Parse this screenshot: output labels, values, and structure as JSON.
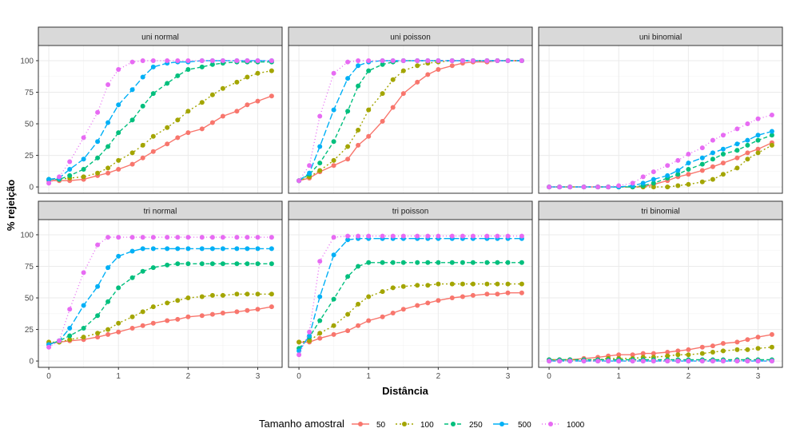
{
  "chart_data": {
    "type": "line",
    "layout": "facet-grid-2x3",
    "xlabel": "Distância",
    "ylabel": "% rejeição",
    "xlim": [
      -0.15,
      3.35
    ],
    "ylim": [
      -5,
      112
    ],
    "x_ticks": [
      0,
      1,
      2,
      3
    ],
    "y_ticks": [
      0,
      25,
      50,
      75,
      100
    ],
    "grid": true,
    "legend_position": "bottom",
    "legend_title": "Tamanho amostral",
    "x": [
      0,
      0.15,
      0.3,
      0.5,
      0.7,
      0.85,
      1,
      1.2,
      1.35,
      1.5,
      1.7,
      1.85,
      2,
      2.2,
      2.35,
      2.5,
      2.7,
      2.85,
      3,
      3.2
    ],
    "series_styles": [
      {
        "name": "50",
        "color": "#F8766D",
        "dash": ""
      },
      {
        "name": "100",
        "color": "#A3A500",
        "dash": "2,3"
      },
      {
        "name": "250",
        "color": "#00BF7D",
        "dash": "5,3"
      },
      {
        "name": "500",
        "color": "#00B0F6",
        "dash": "8,3"
      },
      {
        "name": "1000",
        "color": "#E76BF3",
        "dash": "1,3"
      }
    ],
    "panels": [
      {
        "title": "uni normal",
        "series": [
          {
            "name": "50",
            "values": [
              5,
              5,
              5,
              6,
              9,
              11,
              14,
              18,
              23,
              28,
              34,
              39,
              43,
              46,
              51,
              56,
              60,
              65,
              68,
              72
            ]
          },
          {
            "name": "100",
            "values": [
              6,
              6,
              7,
              8,
              11,
              15,
              21,
              27,
              33,
              40,
              47,
              53,
              60,
              67,
              73,
              78,
              83,
              87,
              90,
              92
            ]
          },
          {
            "name": "250",
            "values": [
              6,
              6,
              9,
              14,
              23,
              32,
              43,
              53,
              64,
              74,
              82,
              88,
              93,
              95,
              97,
              98,
              99,
              99,
              99,
              99
            ]
          },
          {
            "name": "500",
            "values": [
              6,
              7,
              14,
              22,
              36,
              51,
              65,
              77,
              87,
              95,
              98,
              99,
              99,
              100,
              100,
              100,
              100,
              100,
              100,
              100
            ]
          },
          {
            "name": "1000",
            "values": [
              3,
              8,
              20,
              39,
              59,
              81,
              93,
              99,
              100,
              100,
              100,
              100,
              100,
              100,
              100,
              100,
              100,
              100,
              100,
              100
            ]
          }
        ]
      },
      {
        "title": "uni poisson",
        "series": [
          {
            "name": "50",
            "values": [
              5,
              7,
              12,
              17,
              22,
              33,
              40,
              52,
              63,
              74,
              83,
              89,
              93,
              96,
              98,
              99,
              99,
              100,
              100,
              100
            ]
          },
          {
            "name": "100",
            "values": [
              5,
              8,
              13,
              21,
              32,
              45,
              61,
              74,
              85,
              92,
              96,
              98,
              99,
              100,
              100,
              100,
              100,
              100,
              100,
              100
            ]
          },
          {
            "name": "250",
            "values": [
              5,
              10,
              19,
              36,
              60,
              80,
              92,
              97,
              99,
              100,
              100,
              100,
              100,
              100,
              100,
              100,
              100,
              100,
              100,
              100
            ]
          },
          {
            "name": "500",
            "values": [
              5,
              11,
              32,
              61,
              86,
              96,
              99,
              100,
              100,
              100,
              100,
              100,
              100,
              100,
              100,
              100,
              100,
              100,
              100,
              100
            ]
          },
          {
            "name": "1000",
            "values": [
              5,
              17,
              56,
              90,
              99,
              100,
              100,
              100,
              100,
              100,
              100,
              100,
              100,
              100,
              100,
              100,
              100,
              100,
              100,
              100
            ]
          }
        ]
      },
      {
        "title": "uni binomial",
        "series": [
          {
            "name": "50",
            "values": [
              0,
              0,
              0,
              0,
              0,
              0,
              0,
              0,
              0,
              2,
              5,
              8,
              10,
              13,
              16,
              19,
              23,
              27,
              30,
              35
            ]
          },
          {
            "name": "100",
            "values": [
              0,
              0,
              0,
              0,
              0,
              0,
              0,
              0,
              0,
              0,
              0,
              1,
              2,
              4,
              6,
              10,
              15,
              22,
              27,
              33
            ]
          },
          {
            "name": "250",
            "values": [
              0,
              0,
              0,
              0,
              0,
              0,
              0,
              0,
              1,
              3,
              7,
              10,
              14,
              18,
              22,
              26,
              29,
              33,
              37,
              41
            ]
          },
          {
            "name": "500",
            "values": [
              0,
              0,
              0,
              0,
              0,
              0,
              0,
              1,
              3,
              6,
              9,
              13,
              19,
              23,
              27,
              30,
              34,
              37,
              41,
              44
            ]
          },
          {
            "name": "1000",
            "values": [
              0,
              0,
              0,
              0,
              0,
              0,
              1,
              3,
              8,
              12,
              17,
              21,
              26,
              31,
              37,
              41,
              46,
              50,
              54,
              57
            ]
          }
        ]
      },
      {
        "title": "tri normal",
        "series": [
          {
            "name": "50",
            "values": [
              14,
              15,
              16,
              17,
              19,
              21,
              23,
              26,
              28,
              30,
              32,
              33,
              35,
              36,
              37,
              38,
              39,
              40,
              41,
              43
            ]
          },
          {
            "name": "100",
            "values": [
              15,
              15,
              17,
              19,
              22,
              25,
              30,
              35,
              39,
              43,
              46,
              48,
              50,
              51,
              52,
              52,
              53,
              53,
              53,
              53
            ]
          },
          {
            "name": "250",
            "values": [
              13,
              16,
              20,
              26,
              36,
              47,
              58,
              66,
              71,
              74,
              76,
              77,
              77,
              77,
              77,
              77,
              77,
              77,
              77,
              77
            ]
          },
          {
            "name": "500",
            "values": [
              13,
              16,
              26,
              44,
              59,
              74,
              83,
              87,
              89,
              89,
              89,
              89,
              89,
              89,
              89,
              89,
              89,
              89,
              89,
              89
            ]
          },
          {
            "name": "1000",
            "values": [
              11,
              16,
              41,
              70,
              92,
              98,
              98,
              98,
              98,
              98,
              98,
              98,
              98,
              98,
              98,
              98,
              98,
              98,
              98,
              98
            ]
          }
        ]
      },
      {
        "title": "tri poisson",
        "series": [
          {
            "name": "50",
            "values": [
              15,
              15,
              18,
              21,
              24,
              28,
              32,
              35,
              38,
              41,
              44,
              46,
              48,
              50,
              51,
              52,
              53,
              53,
              54,
              54
            ]
          },
          {
            "name": "100",
            "values": [
              15,
              16,
              22,
              28,
              37,
              45,
              51,
              55,
              58,
              59,
              60,
              60,
              61,
              61,
              61,
              61,
              61,
              61,
              61,
              61
            ]
          },
          {
            "name": "250",
            "values": [
              10,
              19,
              32,
              49,
              67,
              75,
              78,
              78,
              78,
              78,
              78,
              78,
              78,
              78,
              78,
              78,
              78,
              78,
              78,
              78
            ]
          },
          {
            "name": "500",
            "values": [
              8,
              20,
              51,
              84,
              96,
              97,
              97,
              97,
              97,
              97,
              97,
              97,
              97,
              97,
              97,
              97,
              97,
              97,
              97,
              97
            ]
          },
          {
            "name": "1000",
            "values": [
              5,
              23,
              79,
              98,
              99,
              99,
              99,
              99,
              99,
              99,
              99,
              99,
              99,
              99,
              99,
              99,
              99,
              99,
              99,
              99
            ]
          }
        ]
      },
      {
        "title": "tri binomial",
        "series": [
          {
            "name": "50",
            "values": [
              1,
              1,
              1,
              2,
              3,
              4,
              5,
              5,
              6,
              6,
              7,
              8,
              9,
              11,
              12,
              14,
              15,
              17,
              19,
              21
            ]
          },
          {
            "name": "100",
            "values": [
              1,
              1,
              1,
              1,
              1,
              2,
              2,
              2,
              3,
              3,
              4,
              5,
              5,
              6,
              7,
              8,
              9,
              9,
              10,
              11
            ]
          },
          {
            "name": "250",
            "values": [
              1,
              1,
              1,
              1,
              1,
              1,
              1,
              1,
              1,
              1,
              1,
              1,
              1,
              1,
              1,
              1,
              1,
              1,
              1,
              1
            ]
          },
          {
            "name": "500",
            "values": [
              0,
              0,
              0,
              0,
              0,
              0,
              0,
              0,
              0,
              0,
              0,
              0,
              0,
              0,
              0,
              0,
              0,
              0,
              0,
              0
            ]
          },
          {
            "name": "1000",
            "values": [
              0,
              0,
              0,
              0,
              0,
              0,
              0,
              0,
              0,
              0,
              0,
              0,
              0,
              0,
              0,
              0,
              0,
              0,
              0,
              0
            ]
          }
        ]
      }
    ]
  }
}
